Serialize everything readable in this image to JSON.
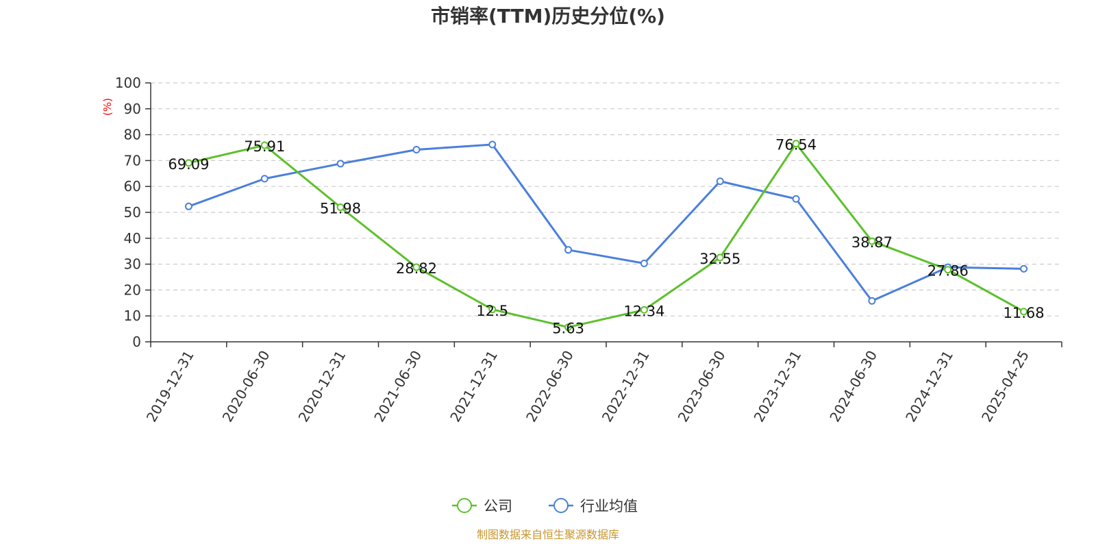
{
  "chart_data": {
    "type": "line",
    "title": "市销率(TTM)历史分位(%)",
    "ylabel": "(%)",
    "ylim": [
      0,
      100
    ],
    "yticks": [
      0,
      10,
      20,
      30,
      40,
      50,
      60,
      70,
      80,
      90,
      100
    ],
    "grid": true,
    "legend_placement": "bottom-center",
    "categories": [
      "2019-12-31",
      "2020-06-30",
      "2020-12-31",
      "2021-06-30",
      "2021-12-31",
      "2022-06-30",
      "2022-12-31",
      "2023-06-30",
      "2023-12-31",
      "2024-06-30",
      "2024-12-31",
      "2025-04-25"
    ],
    "series": [
      {
        "name": "公司",
        "color": "#5cc02b",
        "values": [
          69.09,
          75.91,
          51.98,
          28.82,
          12.5,
          5.63,
          12.34,
          32.55,
          76.54,
          38.87,
          27.86,
          11.68
        ],
        "labels": [
          "69.09",
          "75.91",
          "51.98",
          "28.82",
          "12.5",
          "5.63",
          "12.34",
          "32.55",
          "76.54",
          "38.87",
          "27.86",
          "11.68"
        ]
      },
      {
        "name": "行业均值",
        "color": "#4a7fdc",
        "values": [
          52.3,
          63.0,
          68.8,
          74.2,
          76.2,
          35.5,
          30.3,
          62.0,
          55.2,
          15.8,
          28.8,
          28.2
        ]
      }
    ]
  },
  "footer": {
    "source": "制图数据来自恒生聚源数据库",
    "source_color": "#c8962e"
  },
  "colors": {
    "unit_label": "#ff0000",
    "axis": "#333333",
    "grid": "#cccccc"
  }
}
